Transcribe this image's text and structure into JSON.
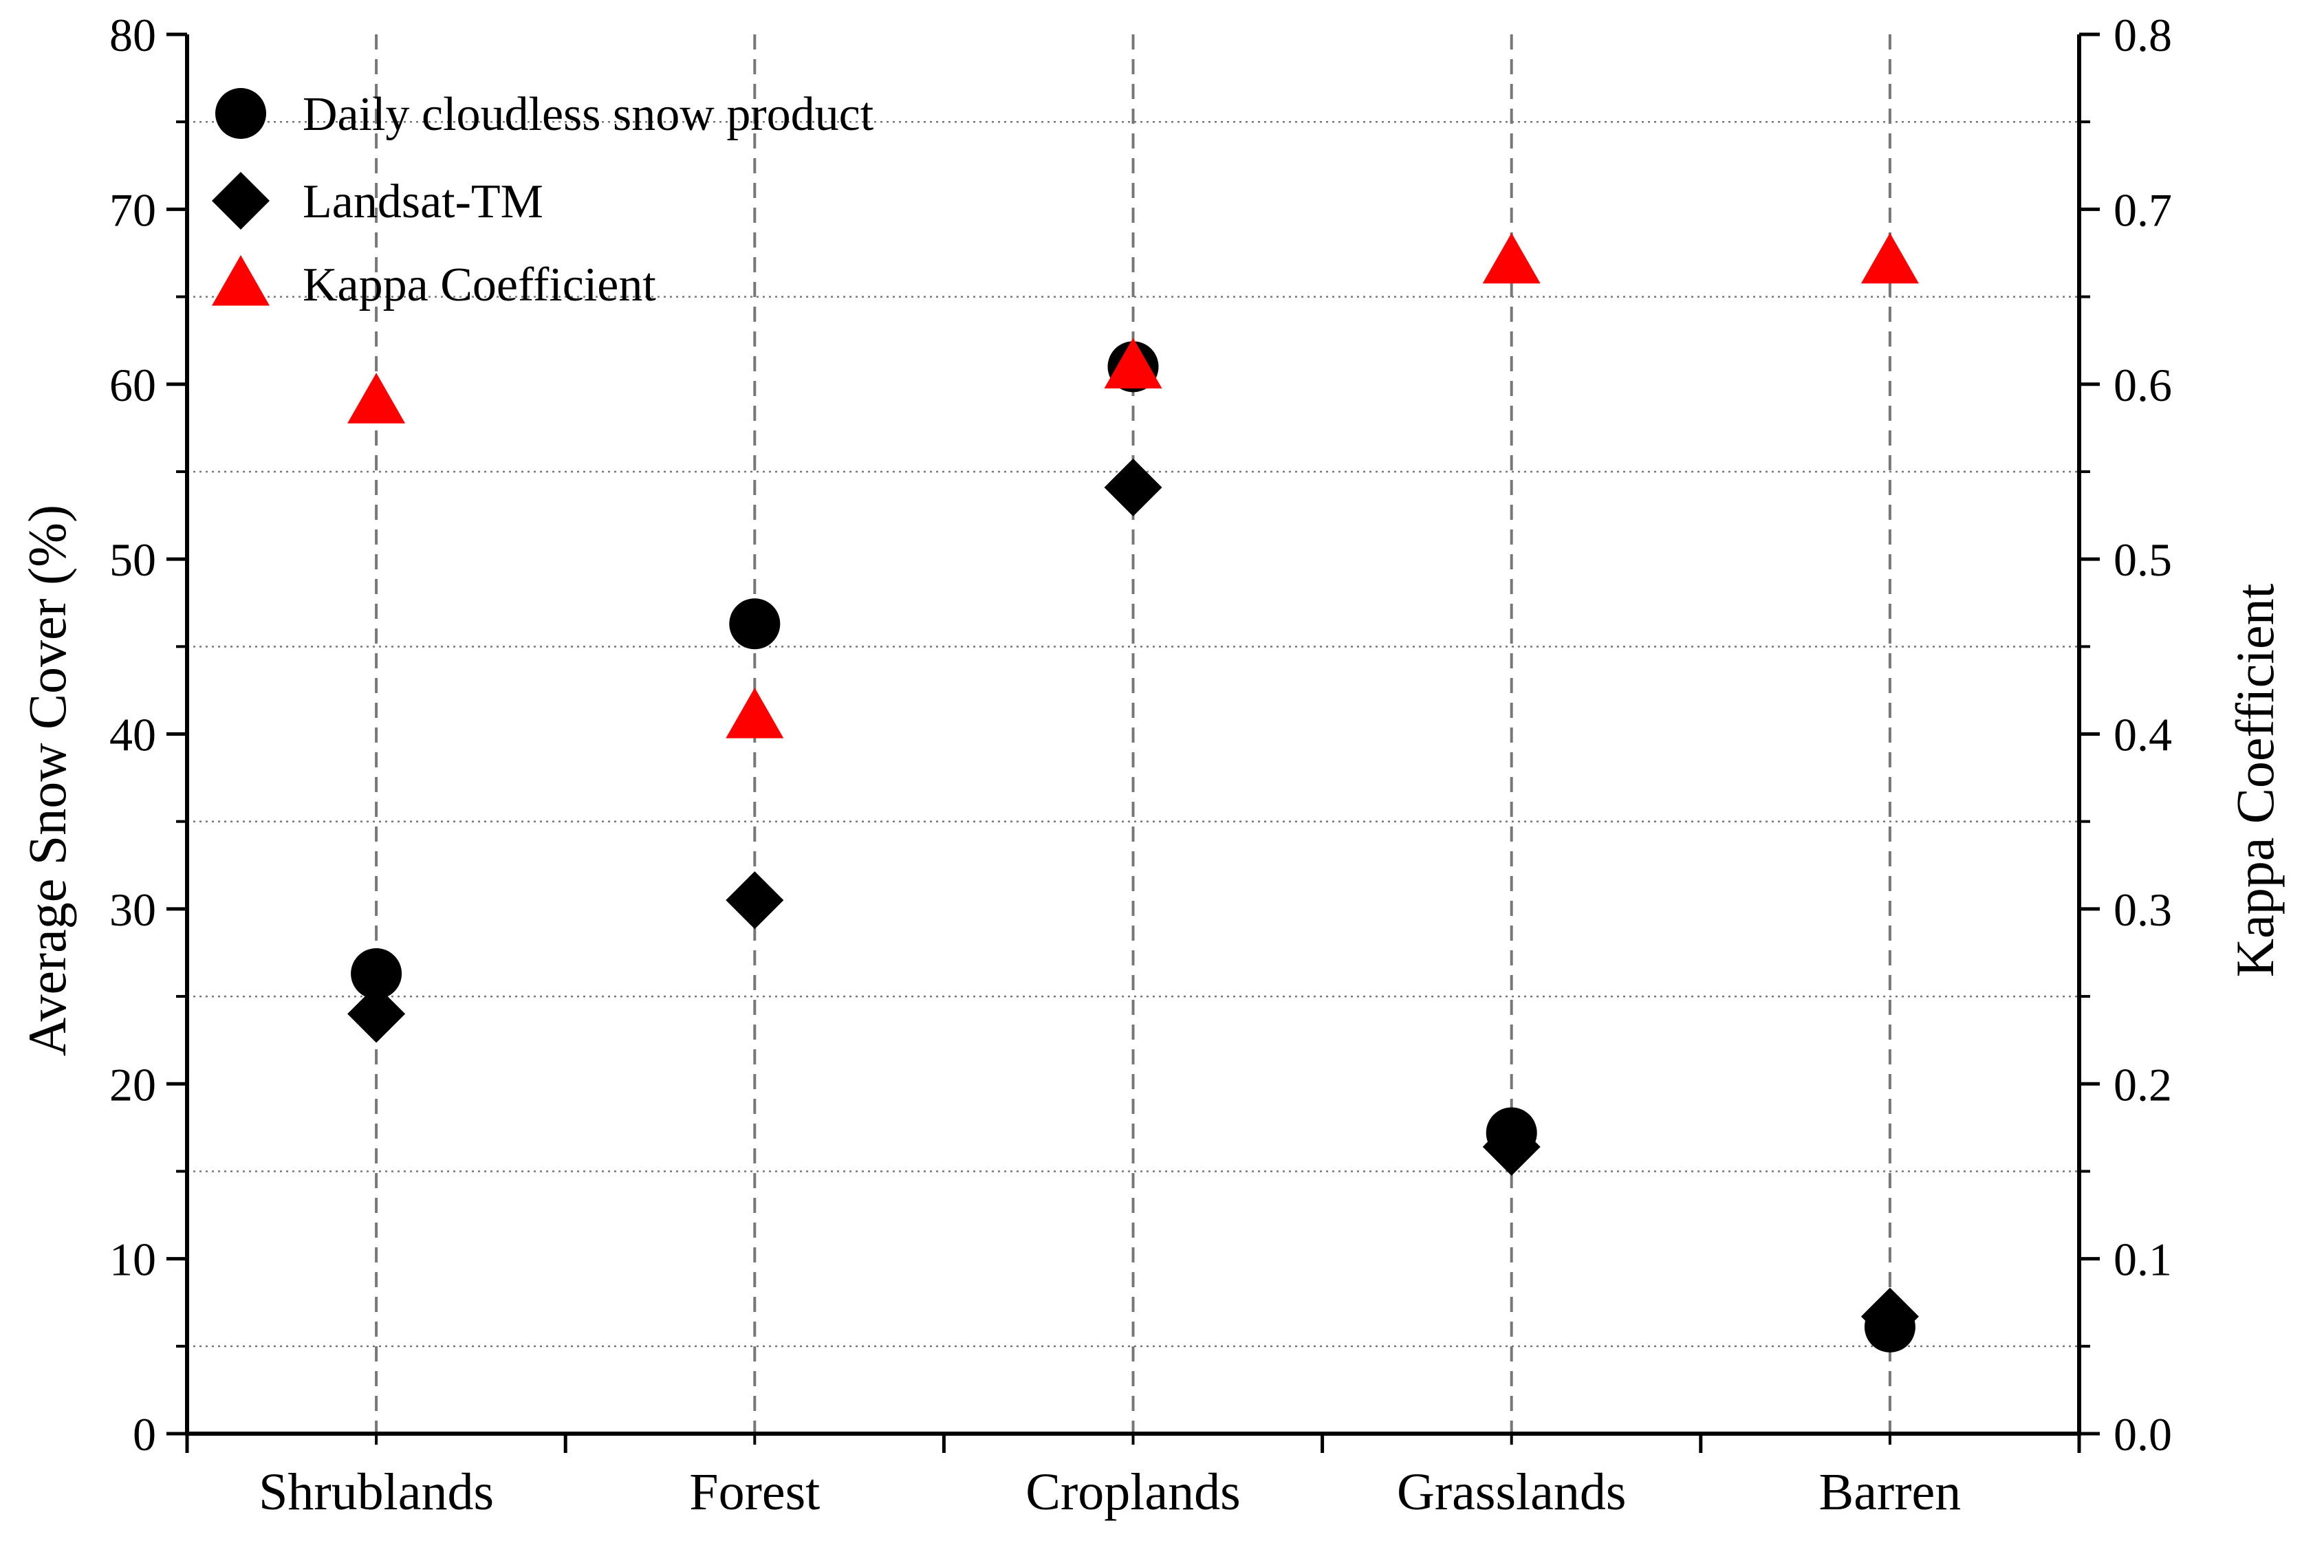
{
  "chart_data": {
    "type": "scatter",
    "title": "",
    "categories": [
      "Shrublands",
      "Forest",
      "Croplands",
      "Grasslands",
      "Barren"
    ],
    "ylabel": "Average Snow Cover (%)",
    "y2label": "Kappa Coefficient",
    "ylim": [
      0,
      80
    ],
    "y2lim": [
      0.0,
      0.8
    ],
    "yticks": [
      "0",
      "10",
      "20",
      "30",
      "40",
      "50",
      "60",
      "70",
      "80"
    ],
    "y2ticks": [
      "0.0",
      "0.1",
      "0.2",
      "0.3",
      "0.4",
      "0.5",
      "0.6",
      "0.7",
      "0.8"
    ],
    "legend_position": "top-left",
    "series": [
      {
        "name": "Daily cloudless snow product",
        "axis": "left",
        "marker": "circle",
        "color": "#000000",
        "values": [
          26.3,
          46.3,
          61.0,
          17.2,
          6.1
        ]
      },
      {
        "name": "Landsat-TM",
        "axis": "left",
        "marker": "diamond",
        "color": "#000000",
        "values": [
          24.0,
          30.5,
          54.1,
          16.4,
          6.7
        ]
      },
      {
        "name": "Kappa Coefficient",
        "axis": "right",
        "marker": "triangle",
        "color": "#ff0000",
        "values": [
          0.59,
          0.41,
          0.61,
          0.67,
          0.67
        ]
      }
    ]
  }
}
